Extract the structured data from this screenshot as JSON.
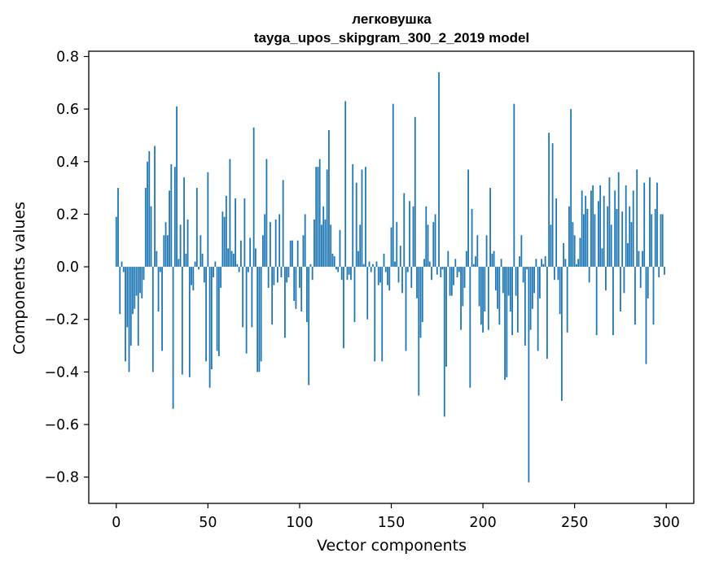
{
  "chart_data": {
    "type": "bar",
    "title_line1": "легковушка",
    "title_line2": "tayga_upos_skipgram_300_2_2019 model",
    "xlabel": "Vector components",
    "ylabel": "Components values",
    "xlim": [
      -15,
      315
    ],
    "ylim": [
      -0.9,
      0.82
    ],
    "xticks": [
      0,
      50,
      100,
      150,
      200,
      250,
      300
    ],
    "xtick_labels": [
      "0",
      "50",
      "100",
      "150",
      "200",
      "250",
      "300"
    ],
    "yticks": [
      0.8,
      0.6,
      0.4,
      0.2,
      0.0,
      -0.2,
      -0.4,
      -0.6,
      -0.8
    ],
    "ytick_labels": [
      "0.8",
      "0.6",
      "0.4",
      "0.2",
      "0.0",
      "−0.2",
      "−0.4",
      "−0.6",
      "−0.8"
    ],
    "bar_color": "#1f77b4",
    "values": [
      0.19,
      0.3,
      -0.18,
      0.02,
      -0.02,
      -0.36,
      -0.23,
      -0.4,
      -0.3,
      -0.18,
      -0.16,
      -0.11,
      -0.3,
      -0.1,
      -0.12,
      -0.05,
      0.3,
      0.4,
      0.44,
      0.23,
      -0.4,
      0.46,
      0.06,
      -0.17,
      -0.02,
      -0.32,
      0.12,
      0.17,
      0.12,
      0.29,
      0.39,
      -0.54,
      0.38,
      0.61,
      0.03,
      0.16,
      -0.41,
      0.34,
      0.05,
      0.18,
      -0.42,
      -0.07,
      -0.09,
      0.02,
      0.3,
      -0.01,
      0.12,
      0.05,
      -0.06,
      -0.36,
      0.36,
      -0.46,
      -0.39,
      -0.04,
      0.02,
      -0.32,
      -0.34,
      -0.08,
      0.21,
      0.19,
      0.27,
      0.07,
      0.41,
      0.06,
      0.05,
      0.26,
      0.01,
      -0.02,
      0.1,
      -0.23,
      0.26,
      -0.33,
      -0.02,
      0.11,
      -0.23,
      0.53,
      0.07,
      -0.4,
      -0.4,
      -0.36,
      0.12,
      0.2,
      0.41,
      -0.08,
      0.17,
      -0.22,
      -0.07,
      0.18,
      -0.06,
      0.2,
      -0.04,
      0.33,
      -0.27,
      -0.06,
      -0.04,
      0.1,
      0.1,
      -0.13,
      -0.16,
      0.1,
      -0.08,
      -0.17,
      0.12,
      0.2,
      -0.21,
      -0.45,
      0.01,
      -0.05,
      0.18,
      0.38,
      0.38,
      0.41,
      0.16,
      0.23,
      0.18,
      0.37,
      0.52,
      0.16,
      0.05,
      0.04,
      -0.01,
      -0.02,
      0.14,
      -0.05,
      -0.31,
      0.63,
      -0.05,
      -0.03,
      -0.05,
      0.39,
      -0.21,
      0.32,
      0.06,
      0.16,
      0.37,
      0.01,
      0.38,
      -0.2,
      0.02,
      -0.02,
      0.01,
      -0.36,
      0.02,
      -0.07,
      -0.06,
      -0.36,
      0.05,
      -0.02,
      -0.07,
      -0.09,
      0.15,
      0.62,
      0.02,
      0.17,
      -0.06,
      0.08,
      -0.1,
      0.28,
      -0.32,
      -0.02,
      0.25,
      -0.08,
      0.23,
      0.57,
      -0.12,
      -0.49,
      -0.27,
      -0.21,
      0.03,
      0.23,
      0.16,
      0.02,
      -0.05,
      0.17,
      0.2,
      -0.03,
      0.74,
      -0.04,
      -0.01,
      -0.57,
      -0.38,
      0.06,
      -0.11,
      -0.11,
      -0.07,
      0.03,
      -0.04,
      -0.02,
      -0.24,
      -0.15,
      -0.08,
      0.06,
      0.37,
      -0.46,
      0.22,
      0.01,
      0.04,
      0.12,
      -0.15,
      -0.22,
      -0.25,
      -0.17,
      0.12,
      -0.24,
      0.3,
      0.05,
      0.06,
      -0.09,
      -0.16,
      -0.22,
      0.03,
      -0.1,
      -0.43,
      -0.42,
      -0.11,
      -0.17,
      -0.26,
      0.62,
      -0.11,
      -0.25,
      0.04,
      0.12,
      -0.06,
      -0.3,
      -0.01,
      -0.82,
      -0.24,
      -0.16,
      -0.1,
      0.03,
      -0.32,
      -0.12,
      0.03,
      0.01,
      0.04,
      -0.35,
      0.51,
      0.16,
      0.47,
      -0.05,
      0.26,
      -0.05,
      -0.18,
      -0.51,
      0.09,
      0.03,
      -0.25,
      0.23,
      0.6,
      0.17,
      0.12,
      0.01,
      0.03,
      0.11,
      0.29,
      0.2,
      0.27,
      0.22,
      -0.06,
      0.29,
      0.31,
      0.2,
      -0.26,
      0.25,
      0.31,
      0.07,
      0.27,
      -0.09,
      0.23,
      0.34,
      0.16,
      -0.26,
      0.29,
      0.22,
      0.36,
      -0.17,
      0.21,
      -0.1,
      0.31,
      0.09,
      0.23,
      0.17,
      0.29,
      -0.22,
      0.37,
      0.06,
      -0.08,
      0.06,
      0.32,
      -0.37,
      -0.12,
      0.34,
      0.2,
      -0.22,
      0.22,
      0.32,
      -0.04,
      0.2,
      0.2,
      -0.03
    ]
  }
}
